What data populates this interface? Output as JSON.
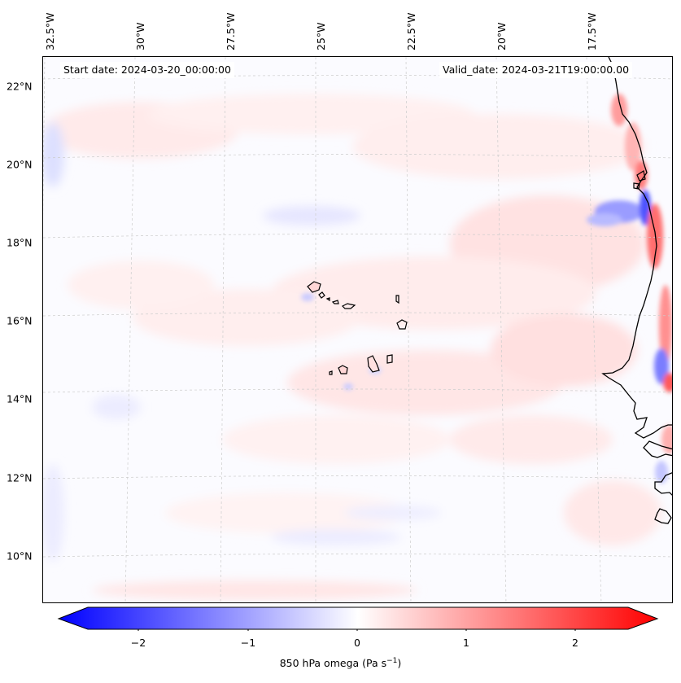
{
  "map": {
    "start_date_text": "Start date: 2024-03-20_00:00:00",
    "valid_date_text": "Valid_date: 2024-03-21T19:00:00.00",
    "longitude_labels": [
      "32.5°W",
      "30°W",
      "27.5°W",
      "25°W",
      "22.5°W",
      "20°W",
      "17.5°W"
    ],
    "latitude_labels": [
      "22°N",
      "20°N",
      "18°N",
      "16°N",
      "14°N",
      "12°N",
      "10°N"
    ],
    "variable": "850 hPa omega",
    "colors": {
      "negative": "#0000ff",
      "neutral": "#ffffff",
      "positive": "#ff0000",
      "coastline": "#000000"
    }
  },
  "colorbar": {
    "tick_labels": [
      "−2",
      "−1",
      "0",
      "1",
      "2"
    ],
    "label_prefix": "850 hPa omega (Pa s",
    "label_exponent": "−1",
    "label_suffix": ")"
  }
}
